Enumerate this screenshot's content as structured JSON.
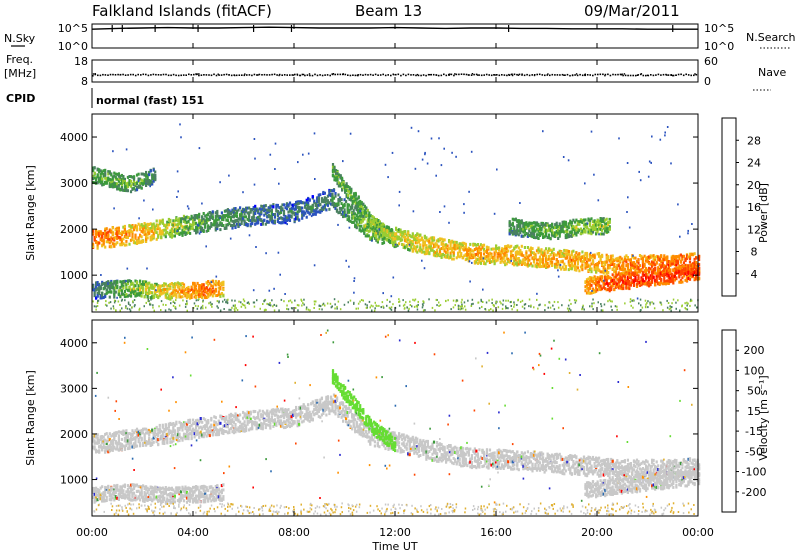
{
  "header": {
    "station": "Falkland Islands (fitACF)",
    "beam": "Beam 13",
    "date": "09/Mar/2011"
  },
  "left_labels": {
    "nsky": "N.Sky",
    "freq": "Freq.",
    "freq_unit": "[MHz]",
    "cpid": "CPID"
  },
  "right_labels": {
    "nsearch": "N.Search",
    "nave": "Nave"
  },
  "cpid_text": "normal (fast) 151",
  "colors": {
    "power_scale": [
      "#0000ff",
      "#2a52be",
      "#4a8060",
      "#3c9a3c",
      "#9acd32",
      "#f0c020",
      "#ff8c00",
      "#ff4500",
      "#ff0000"
    ],
    "velocity_scale": [
      "#2a2ad0",
      "#2a6ab0",
      "#3c9a3c",
      "#66dd33",
      "#c8c8c8",
      "#e0b030",
      "#ff9000",
      "#ff4500",
      "#ff0000"
    ]
  },
  "chart_data": [
    {
      "type": "line",
      "panel": "N.Sky / N.Search",
      "yticks": [
        "10^5",
        "10^0"
      ],
      "yticks_right": [
        "10^5",
        "10^0"
      ],
      "series": [
        {
          "values": [
            4.2,
            4.4,
            4.5,
            4.6,
            4.5,
            4.5,
            4.6,
            4.7,
            4.6,
            4.5,
            4.5,
            4.5,
            4.6,
            4.5,
            4.4,
            4.5,
            4.5,
            4.4,
            4.4,
            4.3,
            4.3,
            4.3,
            4.2,
            4.2,
            4.2
          ]
        }
      ]
    },
    {
      "type": "scatter",
      "panel": "Freq. / Nave",
      "yticks": [
        "18",
        "8"
      ],
      "yticks_right": [
        "60",
        "0"
      ],
      "series": [
        {
          "values": [
            11.5,
            11.6,
            11.6,
            11.5,
            11.6,
            11.6,
            11.5,
            11.6,
            11.6,
            11.5,
            11.6,
            11.6,
            11.6,
            11.5,
            11.6,
            11.6,
            11.5,
            11.6,
            11.6,
            11.5,
            11.6,
            11.6,
            11.5,
            11.6,
            11.6
          ]
        }
      ]
    },
    {
      "type": "heatmap",
      "panel": "Power",
      "ylabel": "Slant Range [km]",
      "ylim": [
        200,
        4500
      ],
      "yticks": [
        1000,
        2000,
        3000,
        4000
      ],
      "colorbar_label": "Power [dB]",
      "colorbar_ticks": [
        4,
        8,
        12,
        16,
        20,
        24,
        28
      ],
      "series": [
        {
          "name": "main",
          "x": [
            0,
            2,
            4,
            6,
            8,
            9.5,
            11,
            13,
            15,
            17,
            19,
            21,
            23,
            24
          ],
          "y": [
            1800,
            1950,
            2150,
            2300,
            2400,
            2700,
            2000,
            1700,
            1500,
            1450,
            1350,
            1250,
            1250,
            1300
          ],
          "values": [
            26,
            22,
            14,
            10,
            9,
            10,
            16,
            20,
            22,
            22,
            22,
            24,
            26,
            26
          ]
        },
        {
          "name": "low",
          "x": [
            0,
            1.5,
            3,
            4.5,
            5.2
          ],
          "y": [
            700,
            750,
            680,
            720,
            750
          ],
          "values": [
            8,
            16,
            20,
            26,
            22
          ]
        },
        {
          "name": "late",
          "x": [
            19.5,
            21,
            22.5,
            24
          ],
          "y": [
            800,
            900,
            1000,
            1100
          ],
          "values": [
            24,
            28,
            28,
            28
          ]
        },
        {
          "name": "upper",
          "x": [
            0,
            1.5,
            2.5
          ],
          "y": [
            3200,
            3000,
            3200
          ],
          "values": [
            14,
            14,
            10
          ]
        },
        {
          "name": "falling",
          "x": [
            9.5,
            10,
            10.5,
            11,
            12
          ],
          "y": [
            3300,
            2900,
            2600,
            2200,
            1800
          ],
          "values": [
            14,
            14,
            14,
            16,
            18
          ]
        },
        {
          "name": "mid-upper",
          "x": [
            16.5,
            17.5,
            18.5,
            19.5,
            20.5
          ],
          "y": [
            2100,
            2000,
            2000,
            2100,
            2100
          ],
          "values": [
            12,
            14,
            14,
            16,
            16
          ]
        }
      ]
    },
    {
      "type": "heatmap",
      "panel": "Velocity",
      "ylabel": "Slant Range [km]",
      "ylim": [
        200,
        4500
      ],
      "yticks": [
        1000,
        2000,
        3000,
        4000
      ],
      "colorbar_label": "Velocity [m s⁻¹]",
      "colorbar_ticks": [
        200,
        100,
        50,
        15,
        -15,
        -50,
        -100,
        -200
      ],
      "series": [
        {
          "name": "main",
          "x": [
            0,
            2,
            4,
            6,
            8,
            9.5,
            11,
            13,
            15,
            17,
            19,
            21,
            23,
            24
          ],
          "y": [
            1800,
            1950,
            2150,
            2300,
            2400,
            2700,
            2000,
            1700,
            1500,
            1450,
            1350,
            1250,
            1250,
            1300
          ],
          "values": [
            0,
            0,
            0,
            0,
            0,
            0,
            0,
            0,
            0,
            0,
            0,
            0,
            0,
            0
          ]
        },
        {
          "name": "low",
          "x": [
            0,
            1.5,
            3,
            4.5,
            5.2
          ],
          "y": [
            700,
            750,
            680,
            720,
            750
          ],
          "values": [
            0,
            0,
            0,
            0,
            0
          ]
        },
        {
          "name": "late",
          "x": [
            19.5,
            21,
            22.5,
            24
          ],
          "y": [
            800,
            900,
            1000,
            1100
          ],
          "values": [
            0,
            0,
            0,
            0
          ]
        },
        {
          "name": "falling",
          "x": [
            9.5,
            10,
            10.5,
            11,
            12
          ],
          "y": [
            3300,
            2900,
            2600,
            2200,
            1800
          ],
          "values": [
            30,
            30,
            30,
            30,
            30
          ]
        }
      ]
    }
  ],
  "x_axis": {
    "label": "Time UT",
    "ticks": [
      "00:00",
      "04:00",
      "08:00",
      "12:00",
      "16:00",
      "20:00",
      "00:00"
    ]
  }
}
